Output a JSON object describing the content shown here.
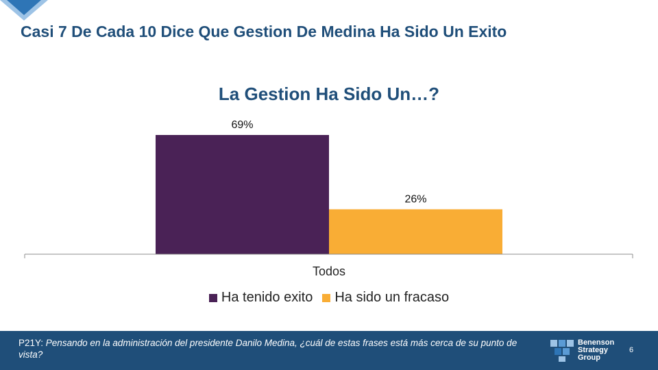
{
  "slide": {
    "title": "Casi 7 De Cada 10 Dice Que Gestion De Medina Ha Sido Un Exito",
    "page_number": "6"
  },
  "chart_data": {
    "type": "bar",
    "title": "La Gestion Ha Sido Un…?",
    "categories": [
      "Todos"
    ],
    "series": [
      {
        "name": "Ha tenido exito",
        "values": [
          69
        ],
        "label": "69%",
        "color": "#4a2256"
      },
      {
        "name": "Ha sido un fracaso",
        "values": [
          26
        ],
        "label": "26%",
        "color": "#f9ad35"
      }
    ],
    "xlabel": "",
    "ylabel": "",
    "ylim": [
      0,
      69
    ],
    "grid": false,
    "legend_position": "bottom"
  },
  "footer": {
    "question_code": "P21Y:",
    "question_text": "Pensando en la administración del presidente Danilo Medina, ¿cuál de estas frases está más cerca de su punto de vista?",
    "background": "#1f4e79"
  },
  "brand": {
    "line1": "Benenson",
    "line2": "Strategy",
    "line3": "Group",
    "logo_icon": "benenson-logo-icon"
  }
}
